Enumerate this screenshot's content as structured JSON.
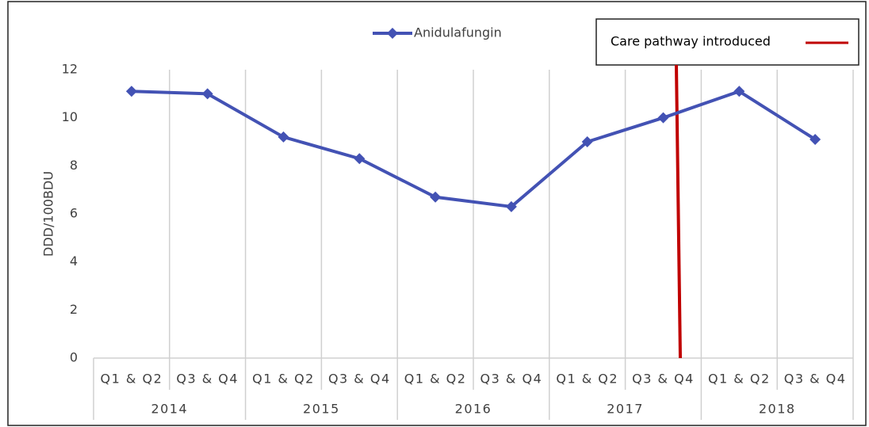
{
  "chart_data": {
    "type": "line",
    "y_label": "DDD/100BDU",
    "categories": [
      "Q1 & Q2",
      "Q3 & Q4",
      "Q1 & Q2",
      "Q3 & Q4",
      "Q1 & Q2",
      "Q3 & Q4",
      "Q1 & Q2",
      "Q3 & Q4",
      "Q1 & Q2",
      "Q3 & Q4"
    ],
    "groups": [
      "2014",
      "2015",
      "2016",
      "2017",
      "2018"
    ],
    "series": [
      {
        "name": "Anidulafungin",
        "color": "#4352b4",
        "values": [
          11.1,
          11.0,
          9.2,
          8.3,
          6.7,
          6.3,
          9.0,
          10.0,
          11.1,
          9.1
        ]
      }
    ],
    "annotation": {
      "label": "Care pathway introduced",
      "color": "#c00000"
    },
    "ylim": [
      0,
      12
    ],
    "yticks": [
      0,
      2,
      4,
      6,
      8,
      10,
      12
    ],
    "grid": true
  }
}
